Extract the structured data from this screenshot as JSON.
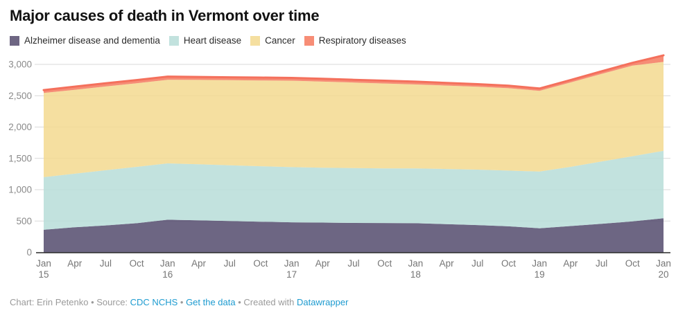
{
  "colors": {
    "link": "#1d9bd0",
    "grid": "#d9d9d9",
    "axis_line": "#2a2a2a",
    "y_tick_text": "#8a8a8a",
    "x_tick_text": "#757575",
    "top_line": "#f4705c"
  },
  "chart_data": {
    "type": "area",
    "stacked": true,
    "title": "Major causes of death in Vermont over time",
    "xlabel": "",
    "ylabel": "",
    "ylim": [
      0,
      3000
    ],
    "yticks": [
      0,
      500,
      1000,
      1500,
      2000,
      2500,
      3000
    ],
    "ytick_labels": [
      "0",
      "500",
      "1,000",
      "1,500",
      "2,000",
      "2,500",
      "3,000"
    ],
    "grid": "horizontal",
    "legend_position": "top",
    "x_labels": [
      {
        "month": "Jan",
        "year": "15"
      },
      {
        "month": "Apr",
        "year": ""
      },
      {
        "month": "Jul",
        "year": ""
      },
      {
        "month": "Oct",
        "year": ""
      },
      {
        "month": "Jan",
        "year": "16"
      },
      {
        "month": "Apr",
        "year": ""
      },
      {
        "month": "Jul",
        "year": ""
      },
      {
        "month": "Oct",
        "year": ""
      },
      {
        "month": "Jan",
        "year": "17"
      },
      {
        "month": "Apr",
        "year": ""
      },
      {
        "month": "Jul",
        "year": ""
      },
      {
        "month": "Oct",
        "year": ""
      },
      {
        "month": "Jan",
        "year": "18"
      },
      {
        "month": "Apr",
        "year": ""
      },
      {
        "month": "Jul",
        "year": ""
      },
      {
        "month": "Oct",
        "year": ""
      },
      {
        "month": "Jan",
        "year": "19"
      },
      {
        "month": "Apr",
        "year": ""
      },
      {
        "month": "Jul",
        "year": ""
      },
      {
        "month": "Oct",
        "year": ""
      },
      {
        "month": "Jan",
        "year": "20"
      }
    ],
    "series": [
      {
        "name": "Alzheimer disease and dementia",
        "fill": "#544b6d",
        "legend_color": "#6e6683",
        "values": [
          360,
          400,
          430,
          465,
          520,
          510,
          500,
          490,
          480,
          475,
          470,
          468,
          465,
          450,
          435,
          415,
          385,
          420,
          455,
          495,
          545
        ]
      },
      {
        "name": "Heart disease",
        "fill": "#b7ddd8",
        "legend_color": "#c2e2de",
        "values": [
          840,
          855,
          880,
          900,
          900,
          895,
          890,
          885,
          880,
          875,
          875,
          872,
          875,
          880,
          885,
          890,
          905,
          945,
          995,
          1040,
          1075
        ]
      },
      {
        "name": "Cancer",
        "fill": "#f3d98f",
        "legend_color": "#f5dfa0",
        "values": [
          1345,
          1340,
          1338,
          1335,
          1335,
          1347,
          1358,
          1369,
          1380,
          1375,
          1365,
          1355,
          1340,
          1332,
          1323,
          1315,
          1288,
          1347,
          1398,
          1445,
          1420
        ]
      },
      {
        "name": "Respiratory diseases",
        "fill": "#f5795e",
        "legend_color": "#f78d76",
        "values": [
          45,
          50,
          52,
          50,
          50,
          48,
          47,
          46,
          45,
          45,
          45,
          45,
          45,
          43,
          42,
          40,
          37,
          38,
          42,
          45,
          105
        ]
      }
    ],
    "fill_opacity": 0.85
  },
  "footer": {
    "credit": "Chart: Erin Petenko",
    "sep1": " • ",
    "source_label": "Source: ",
    "source_link": "CDC NCHS",
    "sep2": " • ",
    "data_link": "Get the data",
    "sep3": " • ",
    "created_label": "Created with ",
    "created_link": "Datawrapper"
  }
}
